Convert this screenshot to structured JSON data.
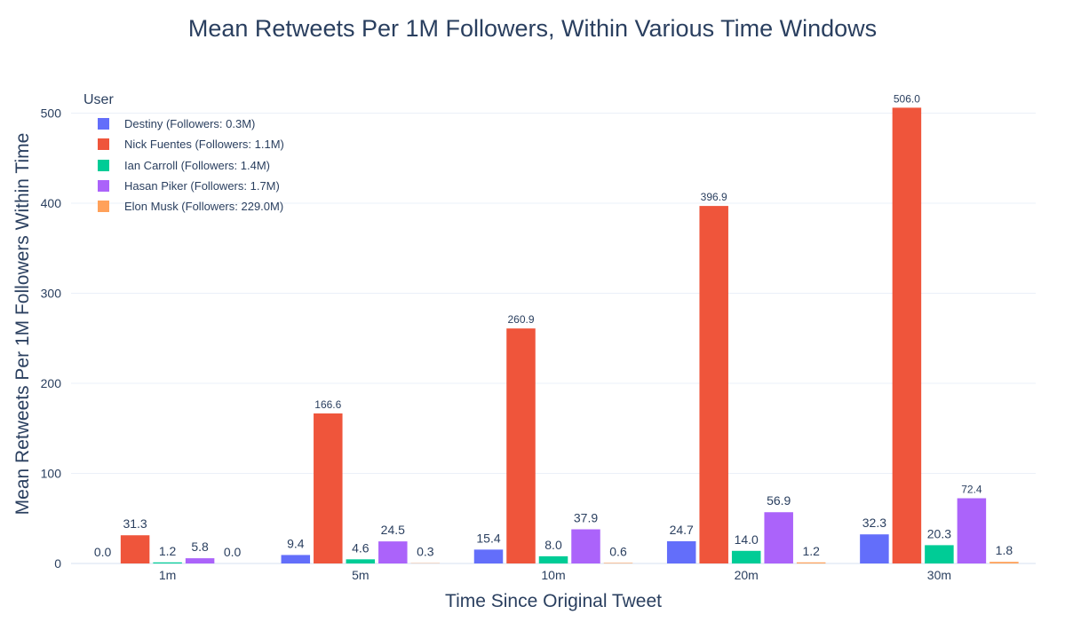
{
  "chart_data": {
    "type": "bar",
    "title": "Mean Retweets Per 1M Followers, Within Various Time Windows",
    "xlabel": "Time Since Original Tweet",
    "ylabel": "Mean Retweets Per 1M Followers Within Time",
    "categories": [
      "1m",
      "5m",
      "10m",
      "20m",
      "30m"
    ],
    "ylim": [
      0,
      530
    ],
    "yticks": [
      0,
      100,
      200,
      300,
      400,
      500
    ],
    "grid": true,
    "legend_title": "User",
    "legend_position": "top-left",
    "series": [
      {
        "name": "Destiny (Followers: 0.3M)",
        "color": "#636efa",
        "values": [
          0.0,
          9.4,
          15.4,
          24.7,
          32.3
        ],
        "labels": [
          "0.0",
          "9.4",
          "15.4",
          "24.7",
          "32.3"
        ]
      },
      {
        "name": "Nick Fuentes (Followers: 1.1M)",
        "color": "#ef553b",
        "values": [
          31.3,
          166.6,
          260.9,
          396.9,
          506.0
        ],
        "labels": [
          "31.3",
          "166.6",
          "260.9",
          "396.9",
          "506.0"
        ]
      },
      {
        "name": "Ian Carroll (Followers: 1.4M)",
        "color": "#00cc96",
        "values": [
          1.2,
          4.6,
          8.0,
          14.0,
          20.3
        ],
        "labels": [
          "1.2",
          "4.6",
          "8.0",
          "14.0",
          "20.3"
        ]
      },
      {
        "name": "Hasan Piker (Followers: 1.7M)",
        "color": "#ab63fa",
        "values": [
          5.8,
          24.5,
          37.9,
          56.9,
          72.4
        ],
        "labels": [
          "5.8",
          "24.5",
          "37.9",
          "56.9",
          "72.4"
        ]
      },
      {
        "name": "Elon Musk (Followers: 229.0M)",
        "color": "#ffa15a",
        "values": [
          0.0,
          0.3,
          0.6,
          1.2,
          1.8
        ],
        "labels": [
          "0.0",
          "0.3",
          "0.6",
          "1.2",
          "1.8"
        ]
      }
    ]
  }
}
